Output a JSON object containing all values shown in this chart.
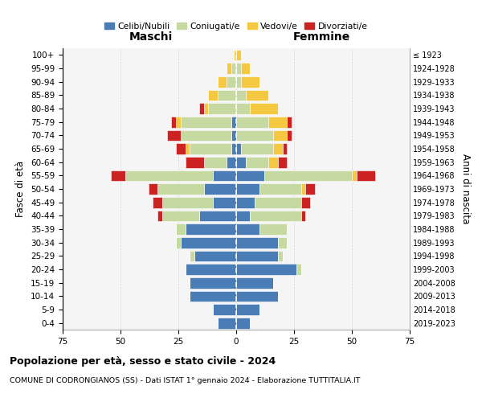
{
  "age_groups": [
    "0-4",
    "5-9",
    "10-14",
    "15-19",
    "20-24",
    "25-29",
    "30-34",
    "35-39",
    "40-44",
    "45-49",
    "50-54",
    "55-59",
    "60-64",
    "65-69",
    "70-74",
    "75-79",
    "80-84",
    "85-89",
    "90-94",
    "95-99",
    "100+"
  ],
  "birth_years": [
    "2019-2023",
    "2014-2018",
    "2009-2013",
    "2004-2008",
    "1999-2003",
    "1994-1998",
    "1989-1993",
    "1984-1988",
    "1979-1983",
    "1974-1978",
    "1969-1973",
    "1964-1968",
    "1959-1963",
    "1954-1958",
    "1949-1953",
    "1944-1948",
    "1939-1943",
    "1934-1938",
    "1929-1933",
    "1924-1928",
    "≤ 1923"
  ],
  "colors": {
    "celibi": "#4a7db5",
    "coniugati": "#c5d9a0",
    "vedovi": "#f5c842",
    "divorziati": "#cc2222"
  },
  "maschi": {
    "celibi": [
      8,
      10,
      20,
      20,
      22,
      18,
      24,
      22,
      16,
      10,
      14,
      10,
      4,
      2,
      2,
      2,
      0,
      0,
      0,
      0,
      0
    ],
    "coniugati": [
      0,
      0,
      0,
      0,
      0,
      2,
      2,
      4,
      16,
      22,
      20,
      38,
      10,
      18,
      22,
      22,
      12,
      8,
      4,
      2,
      0
    ],
    "vedovi": [
      0,
      0,
      0,
      0,
      0,
      0,
      0,
      0,
      0,
      0,
      0,
      0,
      0,
      2,
      0,
      2,
      2,
      4,
      4,
      2,
      1
    ],
    "divorziati": [
      0,
      0,
      0,
      0,
      0,
      0,
      0,
      0,
      2,
      4,
      4,
      6,
      8,
      4,
      6,
      2,
      2,
      0,
      0,
      0,
      0
    ]
  },
  "femmine": {
    "celibi": [
      6,
      10,
      18,
      16,
      26,
      18,
      18,
      10,
      6,
      8,
      10,
      12,
      4,
      2,
      0,
      0,
      0,
      0,
      0,
      0,
      0
    ],
    "coniugati": [
      0,
      0,
      0,
      0,
      2,
      2,
      4,
      12,
      22,
      20,
      18,
      38,
      10,
      14,
      16,
      14,
      6,
      4,
      2,
      2,
      0
    ],
    "vedovi": [
      0,
      0,
      0,
      0,
      0,
      0,
      0,
      0,
      0,
      0,
      2,
      2,
      4,
      4,
      6,
      8,
      12,
      10,
      8,
      4,
      2
    ],
    "divorziati": [
      0,
      0,
      0,
      0,
      0,
      0,
      0,
      0,
      2,
      4,
      4,
      8,
      4,
      2,
      2,
      2,
      0,
      0,
      0,
      0,
      0
    ]
  },
  "xlim": 75,
  "legend_labels": [
    "Celibi/Nubili",
    "Coniugati/e",
    "Vedovi/e",
    "Divorziati/e"
  ],
  "title1": "Popolazione per età, sesso e stato civile - 2024",
  "title2": "COMUNE DI CODRONGIANOS (SS) - Dati ISTAT 1° gennaio 2024 - Elaborazione TUTTITALIA.IT",
  "ylabel_left": "Fasce di età",
  "ylabel_right": "Anni di nascita",
  "label_maschi": "Maschi",
  "label_femmine": "Femmine",
  "bg_color": "#f5f5f5",
  "grid_color": "#cccccc"
}
